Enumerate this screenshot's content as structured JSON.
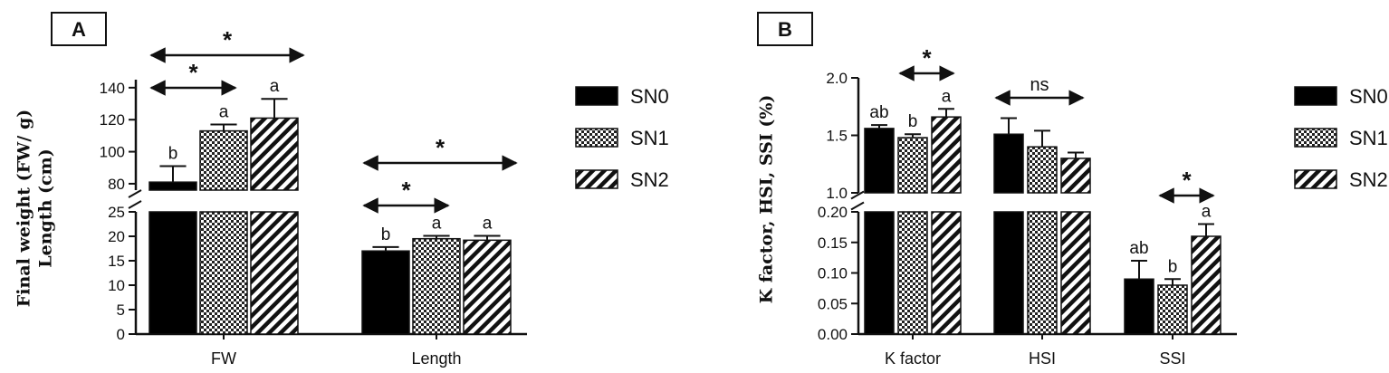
{
  "chart_data": [
    {
      "type": "bar",
      "panel_label": "A",
      "ylabel_lines": [
        "Final weight (FW/ g)",
        "Length (cm)"
      ],
      "categories": [
        "FW",
        "Length"
      ],
      "series_names": [
        "SN0",
        "SN1",
        "SN2"
      ],
      "series": [
        {
          "name": "SN0",
          "pattern": "solid",
          "values": [
            81,
            17
          ],
          "errors": [
            10,
            0.8
          ]
        },
        {
          "name": "SN1",
          "pattern": "checker",
          "values": [
            113,
            19.5
          ],
          "errors": [
            4,
            0.6
          ]
        },
        {
          "name": "SN2",
          "pattern": "diagonal",
          "values": [
            121,
            19.2
          ],
          "errors": [
            12,
            0.9
          ]
        }
      ],
      "letters": [
        [
          "b",
          "a",
          "a"
        ],
        [
          "b",
          "a",
          "a"
        ]
      ],
      "axis_segments": [
        {
          "ylim": [
            76,
            145
          ],
          "ticks": [
            80,
            100,
            120,
            140
          ]
        },
        {
          "ylim": [
            0,
            25
          ],
          "ticks": [
            0,
            5,
            10,
            15,
            20,
            25
          ]
        }
      ],
      "segment_of_category": [
        0,
        1
      ],
      "significance": [
        {
          "label": "*",
          "category": 0,
          "from_series": 0,
          "to_series": 2
        },
        {
          "label": "*",
          "category": 0,
          "from_series": 0,
          "to_series": 1
        },
        {
          "label": "*",
          "category": 1,
          "from_series": 0,
          "to_series": 2
        },
        {
          "label": "*",
          "category": 1,
          "from_series": 0,
          "to_series": 1
        }
      ],
      "legend_position": "right"
    },
    {
      "type": "bar",
      "panel_label": "B",
      "ylabel_lines": [
        "K factor, HSI, SSI (%)"
      ],
      "categories": [
        "K factor",
        "HSI",
        "SSI"
      ],
      "series_names": [
        "SN0",
        "SN1",
        "SN2"
      ],
      "series": [
        {
          "name": "SN0",
          "pattern": "solid",
          "values": [
            1.56,
            1.51,
            0.09
          ],
          "errors": [
            0.03,
            0.14,
            0.03
          ]
        },
        {
          "name": "SN1",
          "pattern": "checker",
          "values": [
            1.48,
            1.4,
            0.08
          ],
          "errors": [
            0.03,
            0.14,
            0.01
          ]
        },
        {
          "name": "SN2",
          "pattern": "diagonal",
          "values": [
            1.66,
            1.3,
            0.16
          ],
          "errors": [
            0.07,
            0.05,
            0.02
          ]
        }
      ],
      "letters": [
        [
          "ab",
          "b",
          "a"
        ],
        [
          "",
          "",
          ""
        ],
        [
          "ab",
          "b",
          "a"
        ]
      ],
      "axis_segments": [
        {
          "ylim": [
            1.0,
            2.0
          ],
          "ticks": [
            1.0,
            1.5,
            2.0
          ]
        },
        {
          "ylim": [
            0,
            0.2
          ],
          "ticks": [
            0.0,
            0.05,
            0.1,
            0.15,
            0.2
          ]
        }
      ],
      "segment_of_category": [
        0,
        0,
        1
      ],
      "significance": [
        {
          "label": "*",
          "category": 0,
          "from_series": 1,
          "to_series": 2
        },
        {
          "label": "ns",
          "category": 1,
          "from_series": 0,
          "to_series": 2
        },
        {
          "label": "*",
          "category": 2,
          "from_series": 1,
          "to_series": 2
        }
      ],
      "legend_position": "right"
    }
  ]
}
